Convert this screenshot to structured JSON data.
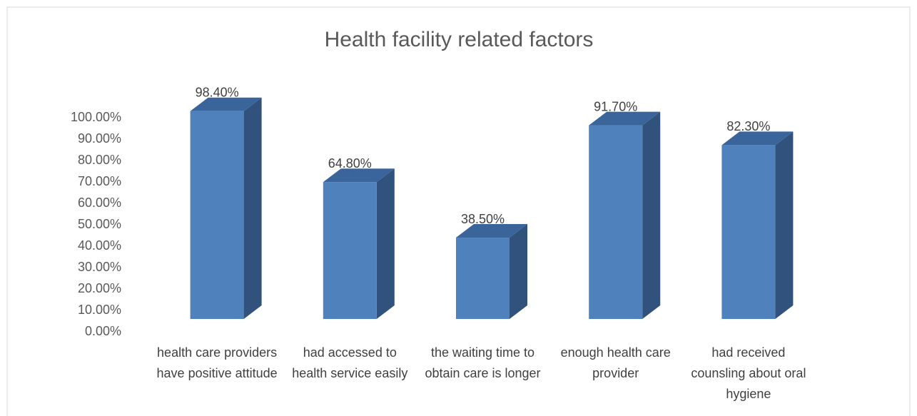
{
  "chart_data": {
    "type": "bar3d",
    "title": "Health facility related factors",
    "categories": [
      "health care providers have positive attitude",
      "had accessed to health service easily",
      "the waiting time to obtain care is longer",
      "enough health care provider",
      "had received counsling about oral hygiene"
    ],
    "values": [
      98.4,
      64.8,
      38.5,
      91.7,
      82.3
    ],
    "value_labels": [
      "98.40%",
      "64.80%",
      "38.50%",
      "91.70%",
      "82.30%"
    ],
    "color": "#4f81bd",
    "ylim": [
      0,
      100
    ],
    "yticks": [
      {
        "value": 0,
        "label": "0.00%"
      },
      {
        "value": 10,
        "label": "10.00%"
      },
      {
        "value": 20,
        "label": "20.00%"
      },
      {
        "value": 30,
        "label": "30.00%"
      },
      {
        "value": 40,
        "label": "40.00%"
      },
      {
        "value": 50,
        "label": "50.00%"
      },
      {
        "value": 60,
        "label": "60.00%"
      },
      {
        "value": 70,
        "label": "70.00%"
      },
      {
        "value": 80,
        "label": "80.00%"
      },
      {
        "value": 90,
        "label": "90.00%"
      },
      {
        "value": 100,
        "label": "100.00%"
      }
    ],
    "grid": false
  }
}
